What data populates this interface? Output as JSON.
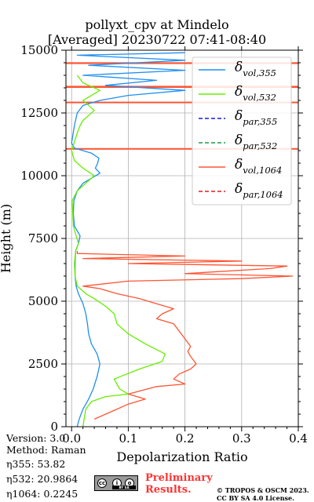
{
  "header": {
    "title_line1": "pollyxt_cpv at Mindelo",
    "title_line2": "[Averaged] 20230722 07:41-08:40"
  },
  "footer": {
    "version": "Version: 3.0",
    "method": "Method: Raman",
    "eta355": "η355:  53.82",
    "eta532": "η532: 20.9864",
    "eta1064": "η1064: 0.2245",
    "preliminary_line1": "Preliminary",
    "preliminary_line2": "Results.",
    "copyright_line1": "© TROPOS & OSCM 2023.",
    "copyright_line2": "CC BY SA 4.0 License.",
    "cc_logo_icon": "cc-by-sa-license-icon",
    "cc_strip_text": "BY SA"
  },
  "chart_data": {
    "type": "line",
    "xlabel": "Depolarization Ratio",
    "ylabel": "Height (m)",
    "xlim": [
      -0.01,
      0.4
    ],
    "ylim": [
      0,
      15000
    ],
    "xticks": [
      0.0,
      0.1,
      0.2,
      0.3,
      0.4
    ],
    "xtick_labels": [
      "0.0",
      "0.1",
      "0.2",
      "0.3",
      "0.4"
    ],
    "yticks": [
      0,
      2500,
      5000,
      7500,
      10000,
      12500,
      15000
    ],
    "ytick_labels": [
      "0",
      "2500",
      "5000",
      "7500",
      "10000",
      "12500",
      "15000"
    ],
    "grid": true,
    "legend_position": "top-right",
    "series": [
      {
        "name": "δvol,355",
        "label_main": "δ",
        "label_sub": "vol,355",
        "color": "#1f8ff0",
        "dash": "",
        "points": [
          [
            0.01,
            0
          ],
          [
            0.012,
            200
          ],
          [
            0.015,
            400
          ],
          [
            0.02,
            700
          ],
          [
            0.03,
            1100
          ],
          [
            0.038,
            1500
          ],
          [
            0.045,
            2000
          ],
          [
            0.05,
            2500
          ],
          [
            0.045,
            2900
          ],
          [
            0.035,
            3300
          ],
          [
            0.03,
            3700
          ],
          [
            0.028,
            4100
          ],
          [
            0.025,
            4500
          ],
          [
            0.02,
            4900
          ],
          [
            0.012,
            5300
          ],
          [
            0.008,
            5600
          ],
          [
            0.006,
            6000
          ],
          [
            0.006,
            6500
          ],
          [
            0.007,
            7000
          ],
          [
            0.012,
            7300
          ],
          [
            0.015,
            7600
          ],
          [
            0.005,
            8000
          ],
          [
            0.003,
            8500
          ],
          [
            0.004,
            9000
          ],
          [
            0.01,
            9400
          ],
          [
            0.02,
            9700
          ],
          [
            0.035,
            9900
          ],
          [
            0.05,
            10100
          ],
          [
            0.042,
            10300
          ],
          [
            0.046,
            10500
          ],
          [
            0.048,
            10700
          ],
          [
            0.035,
            10900
          ],
          [
            0.02,
            11000
          ],
          [
            0.005,
            11100
          ],
          [
            0.0,
            11300
          ],
          [
            0.005,
            12000
          ],
          [
            0.01,
            12500
          ],
          [
            0.02,
            12800
          ],
          [
            0.05,
            13000
          ],
          [
            0.1,
            13200
          ],
          [
            0.2,
            13400
          ],
          [
            0.06,
            13600
          ],
          [
            0.15,
            13800
          ],
          [
            0.02,
            14000
          ],
          [
            0.2,
            14200
          ],
          [
            0.03,
            14400
          ],
          [
            0.2,
            14600
          ],
          [
            0.01,
            14800
          ],
          [
            0.2,
            14900
          ]
        ]
      },
      {
        "name": "δvol,532",
        "label_main": "δ",
        "label_sub": "vol,532",
        "color": "#66ee00",
        "dash": "",
        "points": [
          [
            0.02,
            0
          ],
          [
            0.022,
            300
          ],
          [
            0.025,
            700
          ],
          [
            0.035,
            1000
          ],
          [
            0.06,
            1200
          ],
          [
            0.1,
            1300
          ],
          [
            0.085,
            1500
          ],
          [
            0.075,
            1900
          ],
          [
            0.12,
            2300
          ],
          [
            0.16,
            2600
          ],
          [
            0.165,
            2900
          ],
          [
            0.13,
            3300
          ],
          [
            0.1,
            3700
          ],
          [
            0.08,
            4100
          ],
          [
            0.075,
            4500
          ],
          [
            0.06,
            4800
          ],
          [
            0.04,
            5100
          ],
          [
            0.025,
            5300
          ],
          [
            0.01,
            5600
          ],
          [
            0.006,
            6000
          ],
          [
            0.005,
            6500
          ],
          [
            0.007,
            7000
          ],
          [
            0.012,
            7300
          ],
          [
            0.008,
            7600
          ],
          [
            0.003,
            8000
          ],
          [
            0.002,
            8500
          ],
          [
            0.001,
            9000
          ],
          [
            0.01,
            9400
          ],
          [
            0.02,
            9600
          ],
          [
            0.03,
            9800
          ],
          [
            0.04,
            10000
          ],
          [
            0.02,
            10300
          ],
          [
            0.005,
            10600
          ],
          [
            0.0,
            11000
          ],
          [
            0.01,
            11700
          ],
          [
            0.015,
            12000
          ],
          [
            0.02,
            12200
          ],
          [
            0.03,
            12400
          ],
          [
            0.04,
            12600
          ],
          [
            0.02,
            13000
          ],
          [
            0.05,
            13400
          ],
          [
            0.02,
            13700
          ],
          [
            0.01,
            14000
          ]
        ]
      },
      {
        "name": "δpar,355",
        "label_main": "δ",
        "label_sub": "par,355",
        "color": "#1a1ad6",
        "dash": "5,3",
        "points": []
      },
      {
        "name": "δpar,532",
        "label_main": "δ",
        "label_sub": "par,532",
        "color": "#1f9a4a",
        "dash": "5,3",
        "points": []
      },
      {
        "name": "δvol,1064",
        "label_main": "δ",
        "label_sub": "vol,1064",
        "color": "#ff5533",
        "dash": "",
        "points": [
          [
            0.04,
            300
          ],
          [
            0.06,
            500
          ],
          [
            0.08,
            700
          ],
          [
            0.1,
            900
          ],
          [
            0.13,
            1100
          ],
          [
            0.1,
            1300
          ],
          [
            0.15,
            1600
          ],
          [
            0.2,
            1700
          ],
          [
            0.18,
            1900
          ],
          [
            0.19,
            2100
          ],
          [
            0.21,
            2300
          ],
          [
            0.22,
            2500
          ],
          [
            0.21,
            2800
          ],
          [
            0.205,
            3000
          ],
          [
            0.21,
            3200
          ],
          [
            0.2,
            3500
          ],
          [
            0.19,
            3800
          ],
          [
            0.18,
            4100
          ],
          [
            0.15,
            4300
          ],
          [
            0.16,
            4500
          ],
          [
            0.18,
            4700
          ],
          [
            0.15,
            4900
          ],
          [
            0.12,
            5100
          ],
          [
            0.08,
            5300
          ],
          [
            0.05,
            5500
          ],
          [
            0.02,
            5600
          ],
          [
            0.1,
            5800
          ],
          [
            0.3,
            5900
          ],
          [
            0.39,
            6000
          ],
          [
            0.2,
            6100
          ],
          [
            0.35,
            6300
          ],
          [
            0.38,
            6400
          ],
          [
            0.1,
            6500
          ],
          [
            0.3,
            6600
          ],
          [
            0.02,
            6700
          ],
          [
            0.2,
            6800
          ],
          [
            0.01,
            6900
          ],
          [
            0.01,
            7000
          ]
        ]
      },
      {
        "name": "δpar,1064",
        "label_main": "δ",
        "label_sub": "par,1064",
        "color": "#d42020",
        "dash": "5,3",
        "points": []
      }
    ],
    "bands_1064": [
      11050,
      11100,
      12900,
      12950,
      13500,
      13580,
      14450,
      14520
    ]
  }
}
